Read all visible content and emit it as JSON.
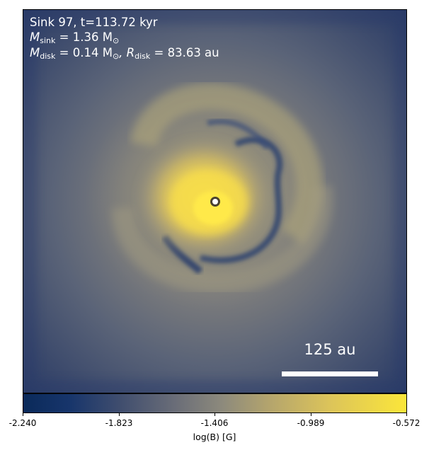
{
  "annotations": {
    "line1": "Sink 97, t=113.72 kyr",
    "sink_mass_symbol": "M",
    "sink_mass_sub": "sink",
    "sink_mass_value": " = 1.36 M",
    "sun_sub": "⊙",
    "disk_mass_symbol": "M",
    "disk_mass_sub": "disk",
    "disk_mass_value": " = 0.14 M",
    "disk_radius_symbol": ", R",
    "disk_radius_sub": "disk",
    "disk_radius_value": " = 83.63 au"
  },
  "scalebar": {
    "label": "125 au"
  },
  "colorbar": {
    "label": "log(B) [G]",
    "ticks": [
      "-2.240",
      "-1.823",
      "-1.406",
      "-0.989",
      "-0.572"
    ],
    "min": -2.24,
    "max": -0.572,
    "colormap": "cividis"
  },
  "colors": {
    "background_low": "#2f3f66",
    "mid": "#8a877b",
    "high": "#f7e04a",
    "sink_marker": "#5a4f2e"
  }
}
